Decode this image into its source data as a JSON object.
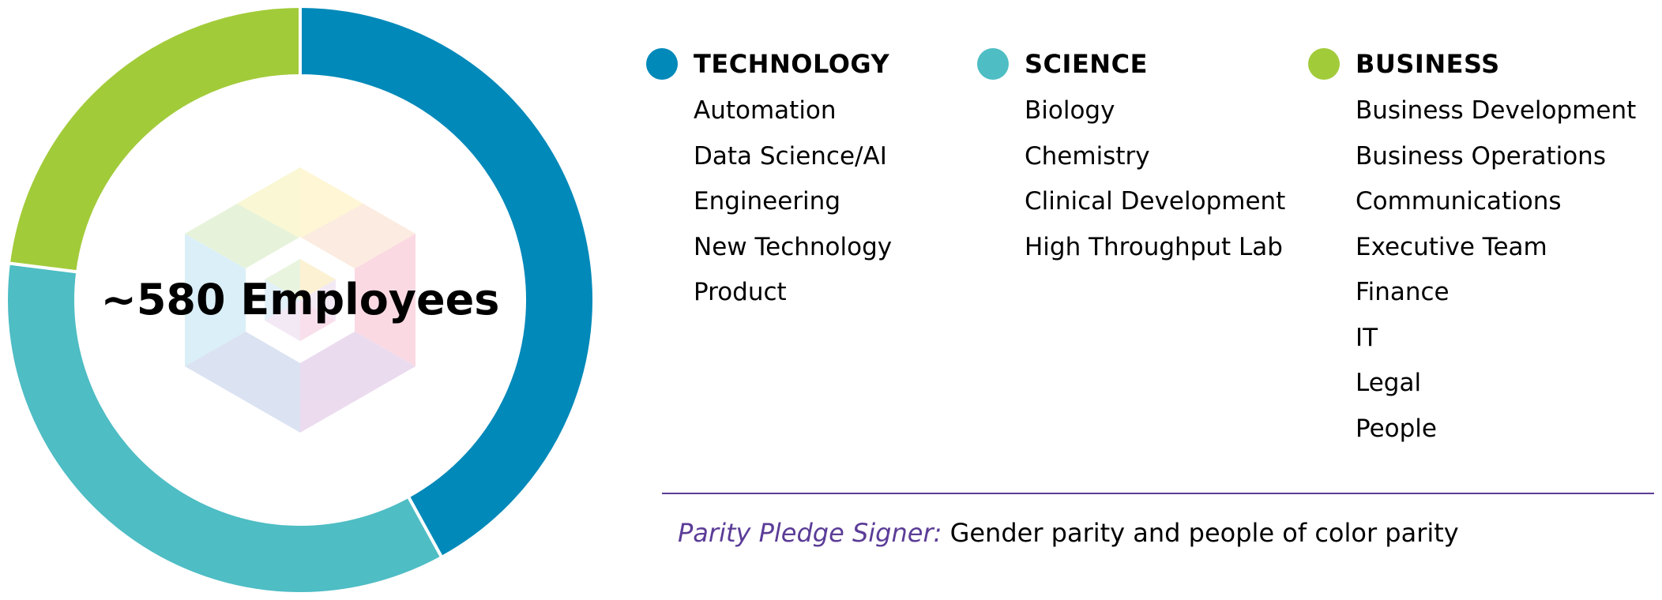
{
  "chart_data": {
    "type": "pie",
    "variant": "donut",
    "center_label": "~580 Employees",
    "slices": [
      {
        "name": "TECHNOLOGY",
        "value": 42,
        "color": "#0089b9"
      },
      {
        "name": "SCIENCE",
        "value": 35,
        "color": "#4ebdc4"
      },
      {
        "name": "BUSINESS",
        "value": 23,
        "color": "#a2cb3a"
      }
    ],
    "legend_placement": "right"
  },
  "legend": [
    {
      "title": "TECHNOLOGY",
      "color": "#0089b9",
      "items": [
        "Automation",
        "Data Science/AI",
        "Engineering",
        "New Technology",
        "Product"
      ]
    },
    {
      "title": "SCIENCE",
      "color": "#4ebdc4",
      "items": [
        "Biology",
        "Chemistry",
        "Clinical Development",
        "High Throughput Lab"
      ]
    },
    {
      "title": "BUSINESS",
      "color": "#a2cb3a",
      "items": [
        "Business Development",
        "Business Operations",
        "Communications",
        "Executive Team",
        "Finance",
        "IT",
        "Legal",
        "People"
      ]
    }
  ],
  "footnote": {
    "label": "Parity Pledge Signer:",
    "text": "Gender parity and people of color parity",
    "label_color": "#5b3c97"
  },
  "logo": {
    "name": "hexagon-logo-icon"
  }
}
